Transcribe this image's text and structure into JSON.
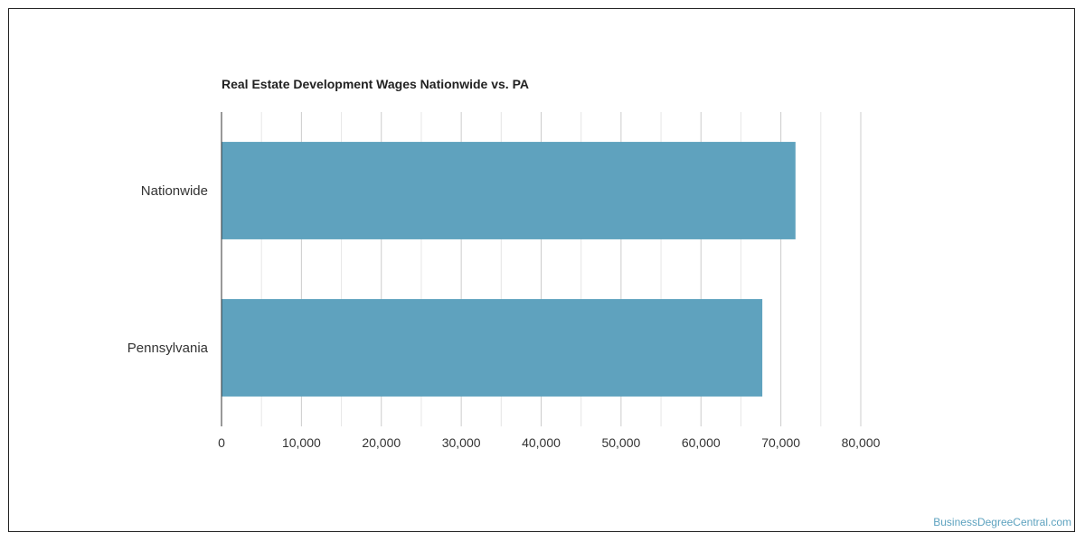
{
  "watermark": "BusinessDegreeCentral.com",
  "colors": {
    "bar": "#5fa2be",
    "grid_major": "#cccccc",
    "grid_minor": "#e6e6e6",
    "axis": "#333333"
  },
  "chart_data": {
    "type": "bar",
    "orientation": "horizontal",
    "title": "Real Estate Development Wages Nationwide vs. PA",
    "categories": [
      "Nationwide",
      "Pennsylvania"
    ],
    "values": [
      71830,
      67680
    ],
    "xlim": [
      0,
      80000
    ],
    "xticks": [
      0,
      10000,
      20000,
      30000,
      40000,
      50000,
      60000,
      70000,
      80000
    ],
    "xtick_labels": [
      "0",
      "10,000",
      "20,000",
      "30,000",
      "40,000",
      "50,000",
      "60,000",
      "70,000",
      "80,000"
    ],
    "xlabel": "",
    "ylabel": "",
    "grid": true
  }
}
